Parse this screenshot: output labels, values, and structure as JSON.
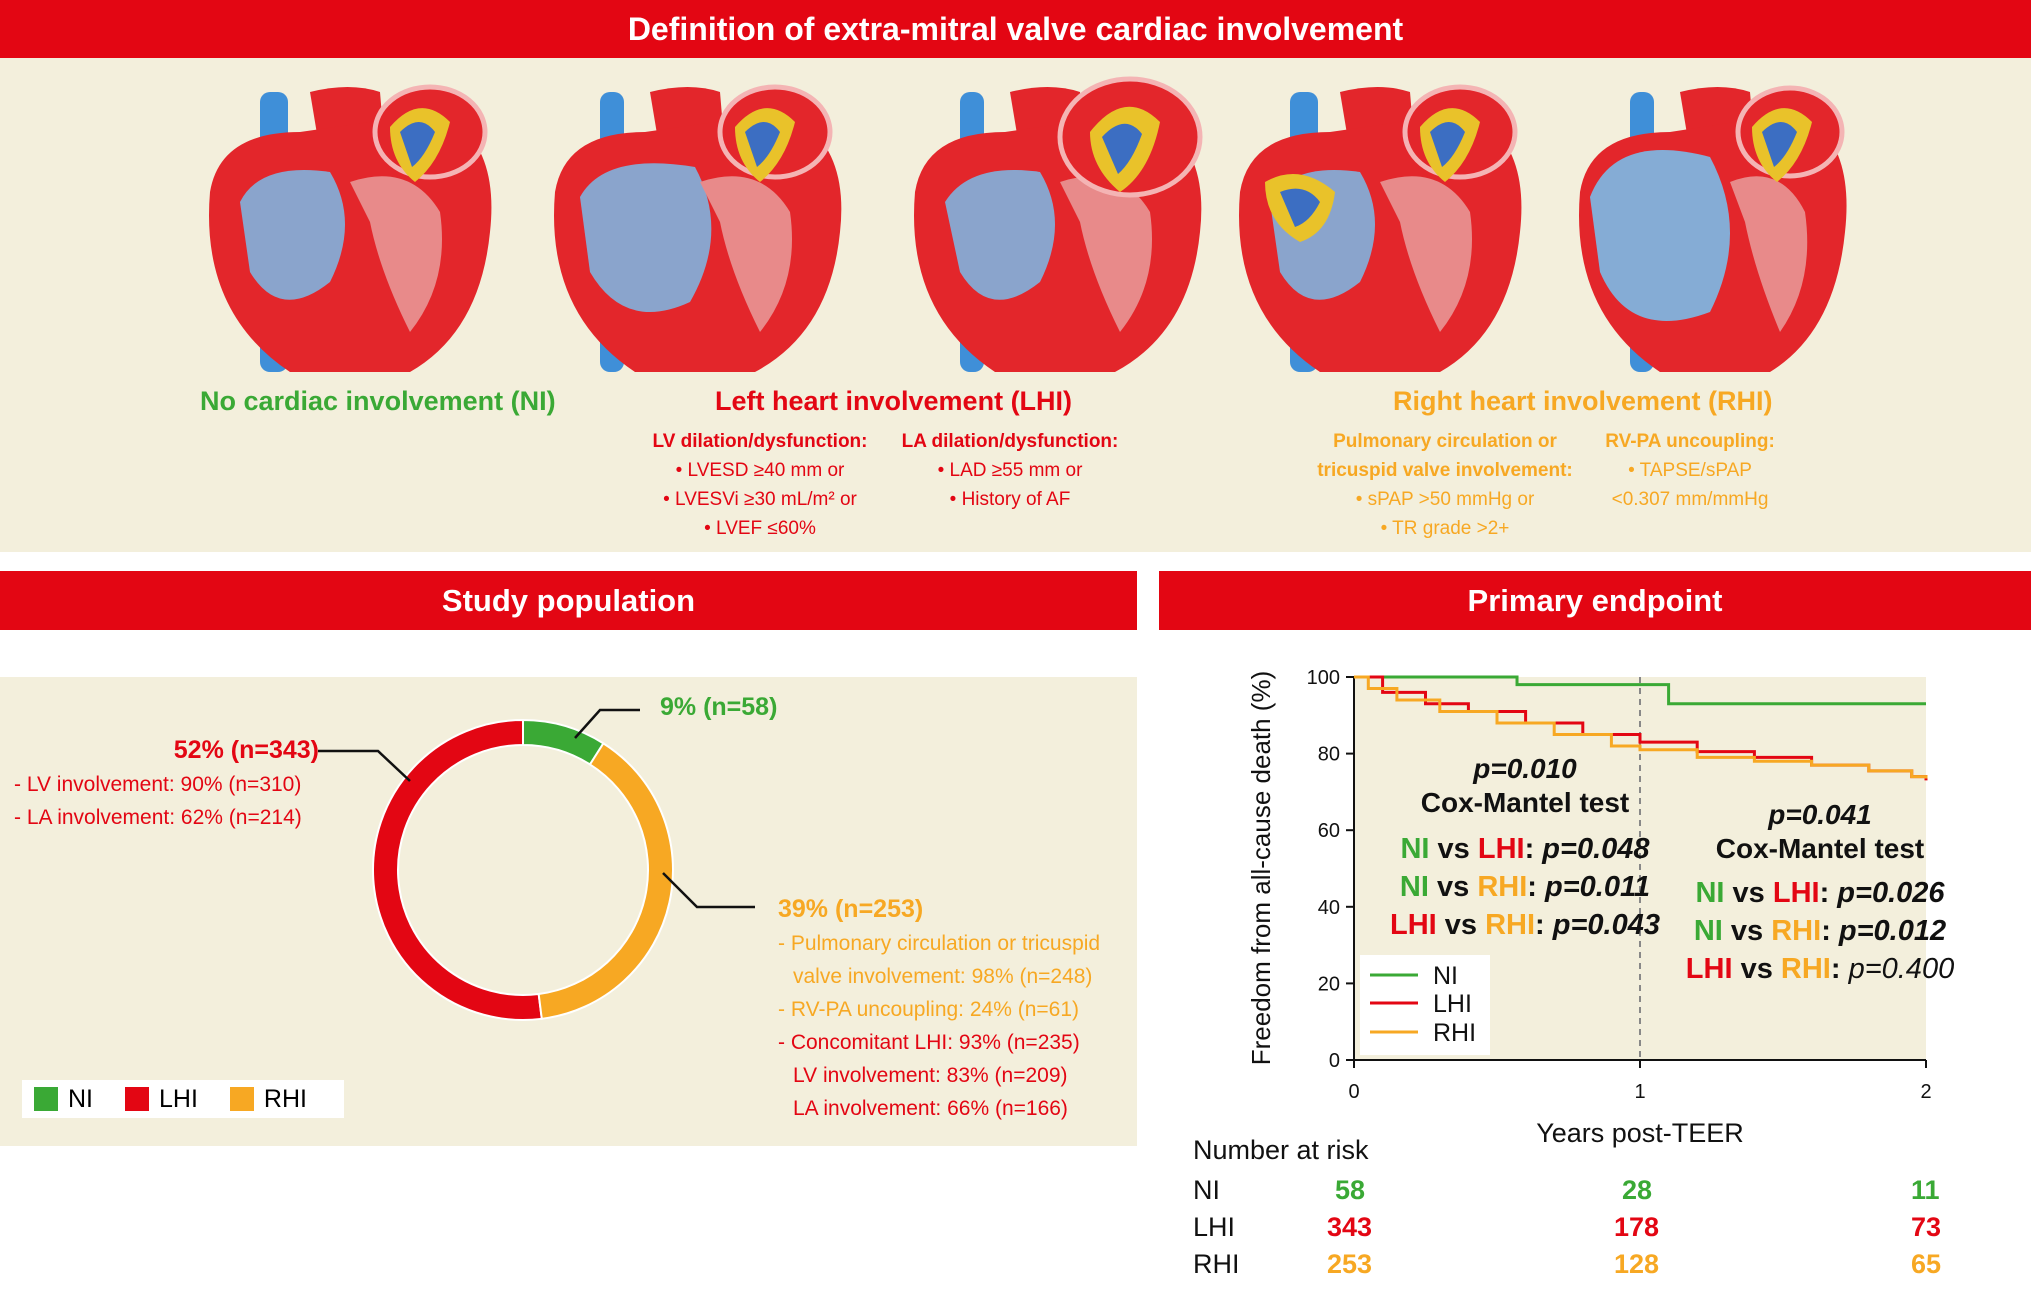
{
  "header": {
    "title": "Definition of extra-mitral valve cardiac involvement"
  },
  "definitions": {
    "ni_title": "No cardiac involvement (NI)",
    "lhi_title": "Left heart involvement (LHI)",
    "rhi_title": "Right heart involvement (RHI)",
    "lv": {
      "heading": "LV dilation/dysfunction:",
      "items": [
        "• LVESD ≥40 mm or",
        "• LVESVi ≥30 mL/m² or",
        "• LVEF ≤60%"
      ]
    },
    "la": {
      "heading": "LA dilation/dysfunction:",
      "items": [
        "• LAD ≥55 mm or",
        "• History of AF"
      ]
    },
    "pc": {
      "heading1": "Pulmonary circulation or",
      "heading2": "tricuspid valve involvement:",
      "items": [
        "• sPAP >50 mmHg or",
        "• TR grade >2+"
      ]
    },
    "rvpa": {
      "heading": "RV-PA uncoupling:",
      "items": [
        "• TAPSE/sPAP",
        "<0.307 mm/mmHg"
      ]
    }
  },
  "study": {
    "title": "Study population",
    "ni_label": "9% (n=58)",
    "lhi_label": "52% (n=343)",
    "lhi_lines": [
      "- LV involvement: 90% (n=310)",
      "- LA involvement: 62% (n=214)"
    ],
    "rhi_label": "39% (n=253)",
    "rhi_lines": [
      "- Pulmonary circulation or tricuspid",
      "  valve involvement: 98% (n=248)",
      "- RV-PA uncoupling: 24% (n=61)"
    ],
    "rhi_lines_red": [
      "- Concomitant LHI: 93% (n=235)",
      "  LV involvement: 83% (n=209)",
      "  LA involvement: 66% (n=166)"
    ],
    "legend": [
      "NI",
      "LHI",
      "RHI"
    ]
  },
  "endpoint": {
    "title": "Primary endpoint"
  },
  "colors": {
    "ni": "#3aa935",
    "lhi": "#e30613",
    "rhi": "#f7a823",
    "band": "#e30613",
    "panel": "#f3efdc"
  },
  "chart_data": [
    {
      "type": "pie",
      "title": "Study population",
      "categories": [
        "NI",
        "LHI",
        "RHI"
      ],
      "values": [
        9,
        52,
        39
      ],
      "n": [
        58,
        343,
        253
      ]
    },
    {
      "type": "line",
      "title": "Primary endpoint",
      "xlabel": "Years post-TEER",
      "ylabel": "Freedom from all-cause death (%)",
      "xlim": [
        0,
        2
      ],
      "ylim": [
        0,
        100
      ],
      "xticks": [
        "0",
        "1",
        "2"
      ],
      "yticks": [
        "0",
        "20",
        "40",
        "60",
        "80",
        "100"
      ],
      "series": [
        {
          "name": "NI",
          "x": [
            0,
            0.57,
            0.57,
            1.1,
            1.1,
            2.0
          ],
          "y": [
            100,
            100,
            98,
            98,
            93,
            93
          ]
        },
        {
          "name": "LHI",
          "x": [
            0,
            0.1,
            0.25,
            0.4,
            0.6,
            0.8,
            1.0,
            1.2,
            1.4,
            1.6,
            1.8,
            1.95,
            2.0
          ],
          "y": [
            100,
            96,
            93,
            91,
            88,
            85,
            83,
            80.5,
            79,
            77,
            75.5,
            74,
            73
          ]
        },
        {
          "name": "RHI",
          "x": [
            0,
            0.05,
            0.15,
            0.3,
            0.5,
            0.7,
            0.9,
            1.0,
            1.2,
            1.4,
            1.6,
            1.8,
            1.95,
            2.0
          ],
          "y": [
            100,
            97,
            94,
            91,
            88,
            85,
            82,
            81,
            79,
            78,
            77,
            75.5,
            74,
            73.5
          ]
        }
      ],
      "legend": [
        "NI",
        "LHI",
        "RHI"
      ],
      "annotations": {
        "overall_p": "p=0.010",
        "overall_test": "Cox-Mantel test",
        "comparisons_0_1": [
          {
            "a": "NI",
            "b": "LHI",
            "p": "p=0.048"
          },
          {
            "a": "NI",
            "b": "RHI",
            "p": "p=0.011"
          },
          {
            "a": "LHI",
            "b": "RHI",
            "p": "p=0.043"
          }
        ],
        "landmark_p": "p=0.041",
        "landmark_test": "Cox-Mantel test",
        "comparisons_1_2": [
          {
            "a": "NI",
            "b": "LHI",
            "p": "p=0.026"
          },
          {
            "a": "NI",
            "b": "RHI",
            "p": "p=0.012"
          },
          {
            "a": "LHI",
            "b": "RHI",
            "p": "p=0.400"
          }
        ],
        "vs": "vs"
      },
      "risk_table": {
        "title": "Number at risk",
        "rows": [
          {
            "label": "NI",
            "values": [
              "58",
              "28",
              "11"
            ]
          },
          {
            "label": "LHI",
            "values": [
              "343",
              "178",
              "73"
            ]
          },
          {
            "label": "RHI",
            "values": [
              "253",
              "128",
              "65"
            ]
          }
        ]
      }
    }
  ]
}
